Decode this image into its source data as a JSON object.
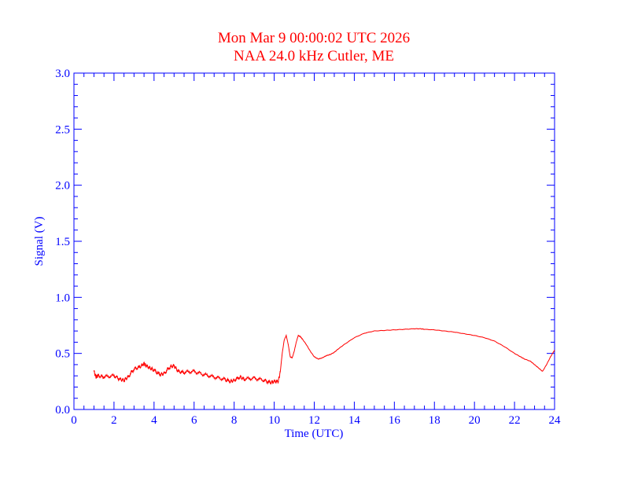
{
  "chart_data": {
    "type": "line",
    "title": "Mon Mar 9 00:00:02 UTC 2026",
    "subtitle": "NAA 24.0 kHz Cutler, ME",
    "xlabel": "Time (UTC)",
    "ylabel": "Signal (V)",
    "xlim": [
      0,
      24
    ],
    "ylim": [
      0,
      3.0
    ],
    "x_ticks": [
      0,
      2,
      4,
      6,
      8,
      10,
      12,
      14,
      16,
      18,
      20,
      22,
      24
    ],
    "x_tick_labels": [
      "0",
      "2",
      "4",
      "6",
      "8",
      "10",
      "12",
      "14",
      "16",
      "18",
      "20",
      "22",
      "24"
    ],
    "y_ticks": [
      0.0,
      0.5,
      1.0,
      1.5,
      2.0,
      2.5,
      3.0
    ],
    "y_tick_labels": [
      "0.0",
      "0.5",
      "1.0",
      "1.5",
      "2.0",
      "2.5",
      "3.0"
    ],
    "grid": false,
    "colors": {
      "axes": "#0000ff",
      "text": "#0000ff",
      "title": "#ff0000",
      "series": "#ff0000"
    },
    "series": [
      {
        "x": [
          1.0,
          1.1,
          1.2,
          1.5,
          2.0,
          2.3,
          2.5,
          2.7,
          3.0,
          3.3,
          3.5,
          3.6,
          3.8,
          4.0,
          4.3,
          4.5,
          4.8,
          5.0,
          5.2,
          5.5,
          6.0,
          6.5,
          7.0,
          7.5,
          7.8,
          8.0,
          8.3,
          8.5,
          9.0,
          9.5,
          9.8,
          10.0,
          10.2,
          10.3,
          10.4,
          10.5,
          10.6,
          10.7,
          10.8,
          10.9,
          11.0,
          11.1,
          11.2,
          11.3,
          11.4,
          11.6,
          11.8,
          12.0,
          12.2,
          12.4,
          12.6,
          12.8,
          13.0,
          13.2,
          13.5,
          14.0,
          14.5,
          15.0,
          15.5,
          16.0,
          16.5,
          17.0,
          17.3,
          17.5,
          18.0,
          18.5,
          19.0,
          19.5,
          20.0,
          20.5,
          21.0,
          21.5,
          22.0,
          22.3,
          22.5,
          22.8,
          23.0,
          23.2,
          23.4,
          23.6,
          23.8,
          24.0
        ],
        "y": [
          0.34,
          0.29,
          0.3,
          0.29,
          0.3,
          0.27,
          0.26,
          0.29,
          0.36,
          0.38,
          0.41,
          0.39,
          0.37,
          0.35,
          0.31,
          0.32,
          0.38,
          0.39,
          0.34,
          0.33,
          0.34,
          0.31,
          0.29,
          0.27,
          0.25,
          0.26,
          0.29,
          0.27,
          0.28,
          0.26,
          0.24,
          0.25,
          0.25,
          0.33,
          0.5,
          0.62,
          0.66,
          0.58,
          0.47,
          0.46,
          0.52,
          0.6,
          0.66,
          0.65,
          0.63,
          0.58,
          0.52,
          0.47,
          0.45,
          0.46,
          0.48,
          0.49,
          0.51,
          0.54,
          0.58,
          0.64,
          0.68,
          0.7,
          0.705,
          0.71,
          0.715,
          0.72,
          0.72,
          0.715,
          0.71,
          0.7,
          0.69,
          0.675,
          0.66,
          0.64,
          0.61,
          0.56,
          0.5,
          0.47,
          0.45,
          0.43,
          0.4,
          0.37,
          0.34,
          0.4,
          0.47,
          0.53
        ]
      }
    ]
  }
}
